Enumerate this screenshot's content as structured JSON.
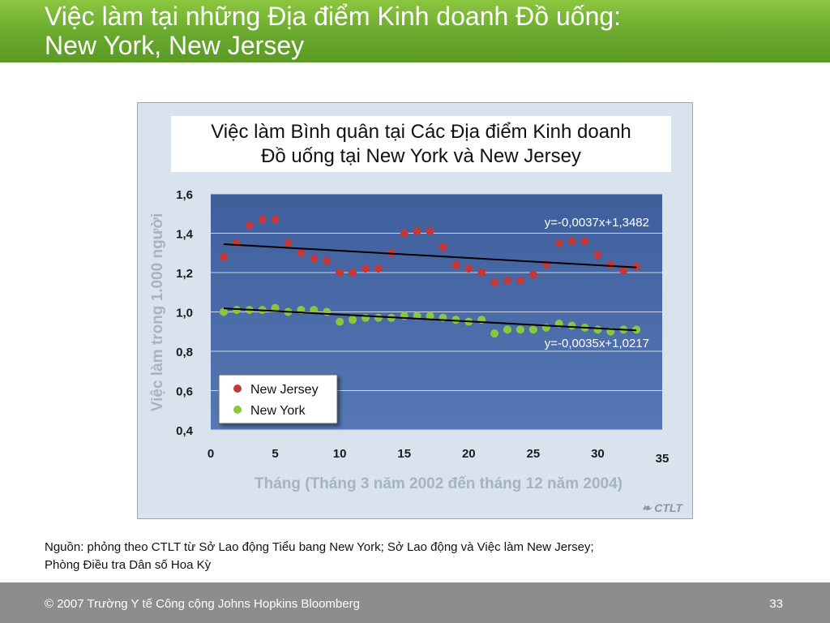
{
  "slide": {
    "title_line1": "Việc làm tại những Địa điểm Kinh doanh Đồ uống:",
    "title_line2": "New York, New Jersey",
    "source_line1": "Nguồn: phỏng theo CTLT từ Sở Lao động Tiểu bang New York; Sở Lao động và Việc làm New Jersey;",
    "source_line2": "Phòng Điều tra Dân số Hoa Kỳ",
    "footer_copyright": "© 2007 Trường Y tế Công cộng Johns Hopkins Bloomberg",
    "page_number": "33",
    "logo_text": "CTLT"
  },
  "colors": {
    "title_bar": "#6aa92e",
    "plot_bg": "#4a6aa5",
    "new_jersey": "#c0393b",
    "new_york": "#8cc63f"
  },
  "chart_data": {
    "type": "scatter",
    "title_line1": "Việc làm Bình quân tại Các Địa điểm Kinh doanh",
    "title_line2": "Đồ uống tại New York và New Jersey",
    "xlabel": "Tháng (Tháng 3 năm 2002 đến tháng 12 năm 2004)",
    "ylabel": "Việc làm trong 1.000 người",
    "xlim": [
      0,
      35
    ],
    "ylim": [
      0.4,
      1.6
    ],
    "x_ticks": [
      "0",
      "5",
      "10",
      "15",
      "20",
      "25",
      "30",
      "35"
    ],
    "y_ticks": [
      "0,4",
      "0,6",
      "0,8",
      "1,0",
      "1,2",
      "1,4",
      "1,6"
    ],
    "grid": true,
    "legend_position": "bottom-left",
    "series": [
      {
        "name": "New Jersey",
        "x": [
          1,
          2,
          3,
          4,
          5,
          6,
          7,
          8,
          9,
          10,
          11,
          12,
          13,
          14,
          15,
          16,
          17,
          18,
          19,
          20,
          21,
          22,
          23,
          24,
          25,
          26,
          27,
          28,
          29,
          30,
          31,
          32,
          33
        ],
        "y": [
          1.28,
          1.35,
          1.44,
          1.47,
          1.47,
          1.35,
          1.3,
          1.27,
          1.26,
          1.2,
          1.2,
          1.22,
          1.22,
          1.3,
          1.4,
          1.41,
          1.41,
          1.33,
          1.24,
          1.22,
          1.2,
          1.15,
          1.16,
          1.16,
          1.19,
          1.24,
          1.35,
          1.36,
          1.36,
          1.29,
          1.24,
          1.21,
          1.23
        ],
        "trendline": "y=-0,0037x+1,3482",
        "slope": -0.0037,
        "intercept": 1.3482
      },
      {
        "name": "New York",
        "x": [
          1,
          2,
          3,
          4,
          5,
          6,
          7,
          8,
          9,
          10,
          11,
          12,
          13,
          14,
          15,
          16,
          17,
          18,
          19,
          20,
          21,
          22,
          23,
          24,
          25,
          26,
          27,
          28,
          29,
          30,
          31,
          32,
          33
        ],
        "y": [
          1.0,
          1.01,
          1.01,
          1.01,
          1.02,
          1.0,
          1.01,
          1.01,
          1.0,
          0.95,
          0.96,
          0.97,
          0.97,
          0.97,
          0.98,
          0.98,
          0.98,
          0.97,
          0.96,
          0.95,
          0.96,
          0.89,
          0.91,
          0.91,
          0.91,
          0.92,
          0.94,
          0.93,
          0.92,
          0.91,
          0.9,
          0.91,
          0.91
        ],
        "trendline": "y=-0,0035x+1,0217",
        "slope": -0.0035,
        "intercept": 1.0217
      }
    ]
  }
}
